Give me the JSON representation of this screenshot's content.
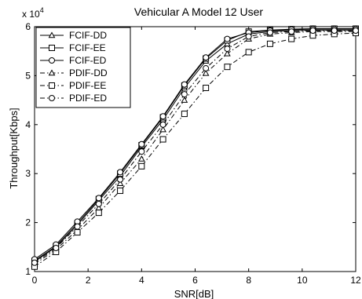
{
  "chart_data": {
    "type": "line",
    "title": "Vehicular A Model 12 User",
    "xlabel": "SNR[dB]",
    "ylabel": "Throughput[Kbps]",
    "y_multiplier_label": "x 10",
    "y_multiplier_exponent": "4",
    "xlim": [
      0,
      12
    ],
    "ylim": [
      1,
      6
    ],
    "x_ticks": [
      0,
      2,
      4,
      6,
      8,
      10,
      12
    ],
    "y_ticks": [
      1,
      2,
      3,
      4,
      5,
      6
    ],
    "grid": false,
    "legend_position": "top-left",
    "x": [
      0,
      0.8,
      1.6,
      2.4,
      3.2,
      4.0,
      4.8,
      5.6,
      6.4,
      7.2,
      8.0,
      8.8,
      9.6,
      10.4,
      11.2,
      12.0
    ],
    "series": [
      {
        "name": "FCIF-DD",
        "line": "solid",
        "marker": "triangle",
        "values": [
          1.2,
          1.5,
          1.95,
          2.45,
          2.95,
          3.55,
          4.1,
          4.75,
          5.3,
          5.65,
          5.85,
          5.9,
          5.92,
          5.93,
          5.93,
          5.93
        ]
      },
      {
        "name": "FCIF-EE",
        "line": "solid",
        "marker": "square",
        "values": [
          1.22,
          1.52,
          1.98,
          2.48,
          3.0,
          3.58,
          4.15,
          4.8,
          5.35,
          5.72,
          5.9,
          5.93,
          5.95,
          5.96,
          5.96,
          5.96
        ]
      },
      {
        "name": "FCIF-ED",
        "line": "solid",
        "marker": "circle",
        "values": [
          1.25,
          1.55,
          2.02,
          2.5,
          3.03,
          3.6,
          4.17,
          4.82,
          5.37,
          5.75,
          5.88,
          5.92,
          5.94,
          5.95,
          5.95,
          5.95
        ]
      },
      {
        "name": "PDIF-DD",
        "line": "dashdot",
        "marker": "triangle",
        "values": [
          1.15,
          1.45,
          1.85,
          2.3,
          2.8,
          3.3,
          3.9,
          4.5,
          5.05,
          5.45,
          5.75,
          5.85,
          5.88,
          5.9,
          5.9,
          5.9
        ]
      },
      {
        "name": "PDIF-EE",
        "line": "dashdot",
        "marker": "square",
        "values": [
          1.1,
          1.4,
          1.8,
          2.2,
          2.65,
          3.15,
          3.7,
          4.22,
          4.75,
          5.18,
          5.48,
          5.65,
          5.75,
          5.82,
          5.85,
          5.87
        ]
      },
      {
        "name": "PDIF-ED",
        "line": "dashdot",
        "marker": "circle",
        "values": [
          1.18,
          1.48,
          1.92,
          2.38,
          2.88,
          3.45,
          4.0,
          4.62,
          5.15,
          5.55,
          5.8,
          5.88,
          5.9,
          5.92,
          5.92,
          5.92
        ]
      }
    ]
  }
}
